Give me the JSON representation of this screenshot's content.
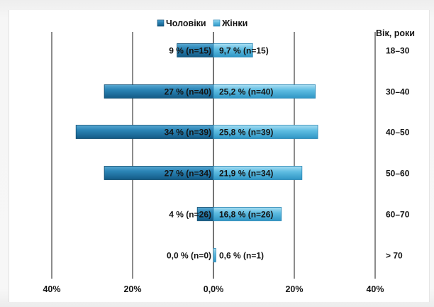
{
  "chart_data": {
    "type": "bar",
    "orientation": "horizontal-diverging",
    "legend": {
      "position": "top-center",
      "entries": [
        {
          "name": "Чоловіки",
          "color": "#1f6f9e"
        },
        {
          "name": "Жінки",
          "color": "#55b6dc"
        }
      ]
    },
    "y_axis_title": "Вік, роки",
    "categories": [
      "18–30",
      "30–40",
      "40–50",
      "50–60",
      "60–70",
      "> 70"
    ],
    "series": [
      {
        "name": "Чоловіки",
        "values": [
          9,
          27,
          34,
          27,
          4,
          0.0
        ],
        "labels": [
          "9 % (n=15)",
          "27 % (n=40)",
          "34 % (n=39)",
          "27 % (n=34)",
          "4 % (n=26)",
          "0,0 % (n=0)"
        ]
      },
      {
        "name": "Жінки",
        "values": [
          9.7,
          25.2,
          25.8,
          21.9,
          16.8,
          0.6
        ],
        "labels": [
          "9,7 % (n=15)",
          "25,2 % (n=40)",
          "25,8 % (n=39)",
          "21,9 % (n=34)",
          "16,8 % (n=26)",
          "0,6 % (n=1)"
        ]
      }
    ],
    "xlim": [
      -40,
      40
    ],
    "x_ticks": [
      {
        "value": -40,
        "label": "40%"
      },
      {
        "value": -20,
        "label": "20%"
      },
      {
        "value": 0,
        "label": "0,0%"
      },
      {
        "value": 20,
        "label": "20%"
      },
      {
        "value": 40,
        "label": "40%"
      }
    ],
    "grid": true
  }
}
